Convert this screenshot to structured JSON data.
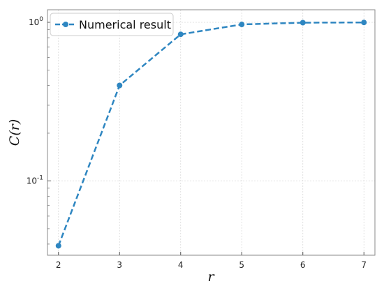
{
  "chart_data": {
    "type": "line",
    "xlabel": "r",
    "ylabel": "C(r)",
    "yscale": "log",
    "xlim": [
      1.82,
      7.18
    ],
    "ylim": [
      0.034,
      1.2
    ],
    "xticks": [
      {
        "value": 2,
        "label": "2"
      },
      {
        "value": 3,
        "label": "3"
      },
      {
        "value": 4,
        "label": "4"
      },
      {
        "value": 5,
        "label": "5"
      },
      {
        "value": 6,
        "label": "6"
      },
      {
        "value": 7,
        "label": "7"
      }
    ],
    "yticks": [
      {
        "value": 0.1,
        "base": "10",
        "exp": "-1"
      },
      {
        "value": 1,
        "base": "10",
        "exp": "0"
      }
    ],
    "grid": true,
    "legend": {
      "position": "top-left"
    },
    "series": [
      {
        "name": "Numerical result",
        "color": "#2e86c1",
        "line_style": "dashed",
        "marker": "circle",
        "x": [
          2,
          3,
          4,
          5,
          6,
          7
        ],
        "y": [
          0.039,
          0.4,
          0.84,
          0.97,
          0.995,
          0.998
        ]
      }
    ]
  }
}
